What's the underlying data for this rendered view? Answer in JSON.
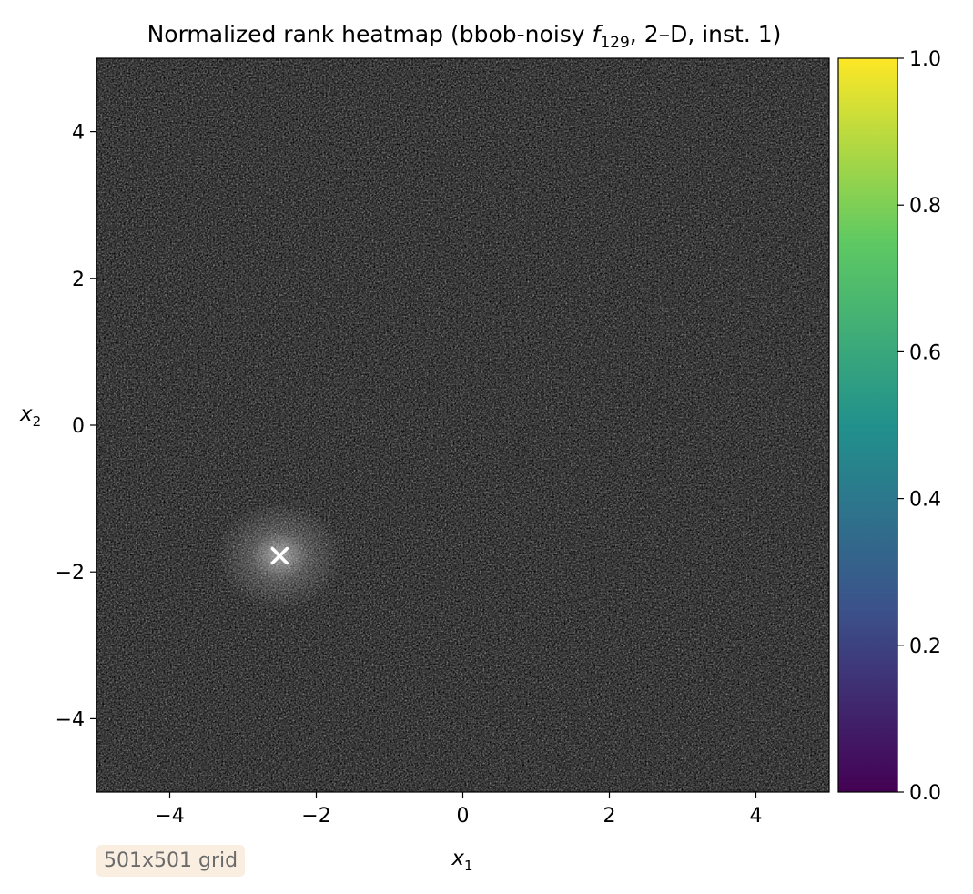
{
  "chart_data": {
    "type": "heatmap",
    "title": "Normalized rank heatmap (bbob-noisy f129, 2–D, inst. 1)",
    "title_parts": {
      "prefix": "Normalized rank heatmap (bbob-noisy ",
      "func_symbol": "f",
      "func_subscript": "129",
      "suffix": ", 2–D, inst. 1)"
    },
    "xlabel": {
      "symbol": "x",
      "subscript": "1"
    },
    "ylabel": {
      "symbol": "x",
      "subscript": "2"
    },
    "xlim": [
      -5,
      5
    ],
    "ylim": [
      -5,
      5
    ],
    "x_ticks": [
      -4,
      -2,
      0,
      2,
      4
    ],
    "y_ticks": [
      -4,
      -2,
      0,
      2,
      4
    ],
    "x_tick_labels": [
      "−4",
      "−2",
      "0",
      "2",
      "4"
    ],
    "y_tick_labels": [
      "−4",
      "−2",
      "0",
      "2",
      "4"
    ],
    "colorbar": {
      "colormap": "viridis",
      "range": [
        0.0,
        1.0
      ],
      "ticks": [
        0.0,
        0.2,
        0.4,
        0.6,
        0.8,
        1.0
      ],
      "tick_labels": [
        "0.0",
        "0.2",
        "0.4",
        "0.6",
        "0.8",
        "1.0"
      ],
      "colors": [
        "#440154",
        "#3b528b",
        "#21918c",
        "#5ec962",
        "#fde725"
      ]
    },
    "optimum_marker": {
      "x": -2.5,
      "y": -1.78,
      "symbol": "x",
      "color": "#ffffff"
    },
    "field_appearance": "dense grayscale speckle noise, dark overall, brighter halo around the marker",
    "grid": false
  },
  "annotation": {
    "text": "501x501 grid"
  }
}
